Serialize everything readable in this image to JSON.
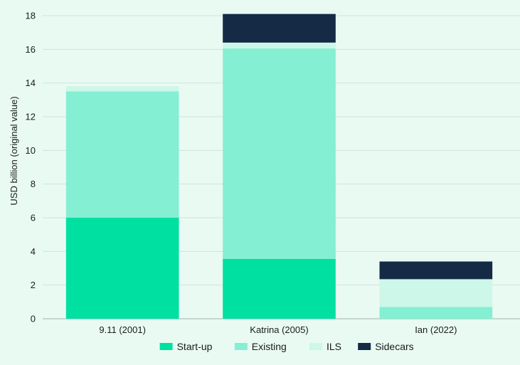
{
  "chart_data": {
    "type": "bar",
    "stacked": true,
    "categories": [
      "9.11 (2001)",
      "Katrina (2005)",
      "Ian (2022)"
    ],
    "series": [
      {
        "name": "Start-up",
        "color": "#00e0a0",
        "values": [
          6.0,
          3.55,
          0.0
        ]
      },
      {
        "name": "Existing",
        "color": "#84efd2",
        "values": [
          7.5,
          12.5,
          0.7
        ]
      },
      {
        "name": "ILS",
        "color": "#cdf7e9",
        "values": [
          0.3,
          0.35,
          1.65
        ]
      },
      {
        "name": "Sidecars",
        "color": "#152b45",
        "values": [
          0.0,
          1.7,
          1.05
        ]
      }
    ],
    "title": "",
    "xlabel": "",
    "ylabel": "USD billion (original value)",
    "ylim": [
      0,
      18
    ],
    "yticks": [
      0,
      2,
      4,
      6,
      8,
      10,
      12,
      14,
      16,
      18
    ],
    "grid": true,
    "legend_position": "bottom-center"
  }
}
